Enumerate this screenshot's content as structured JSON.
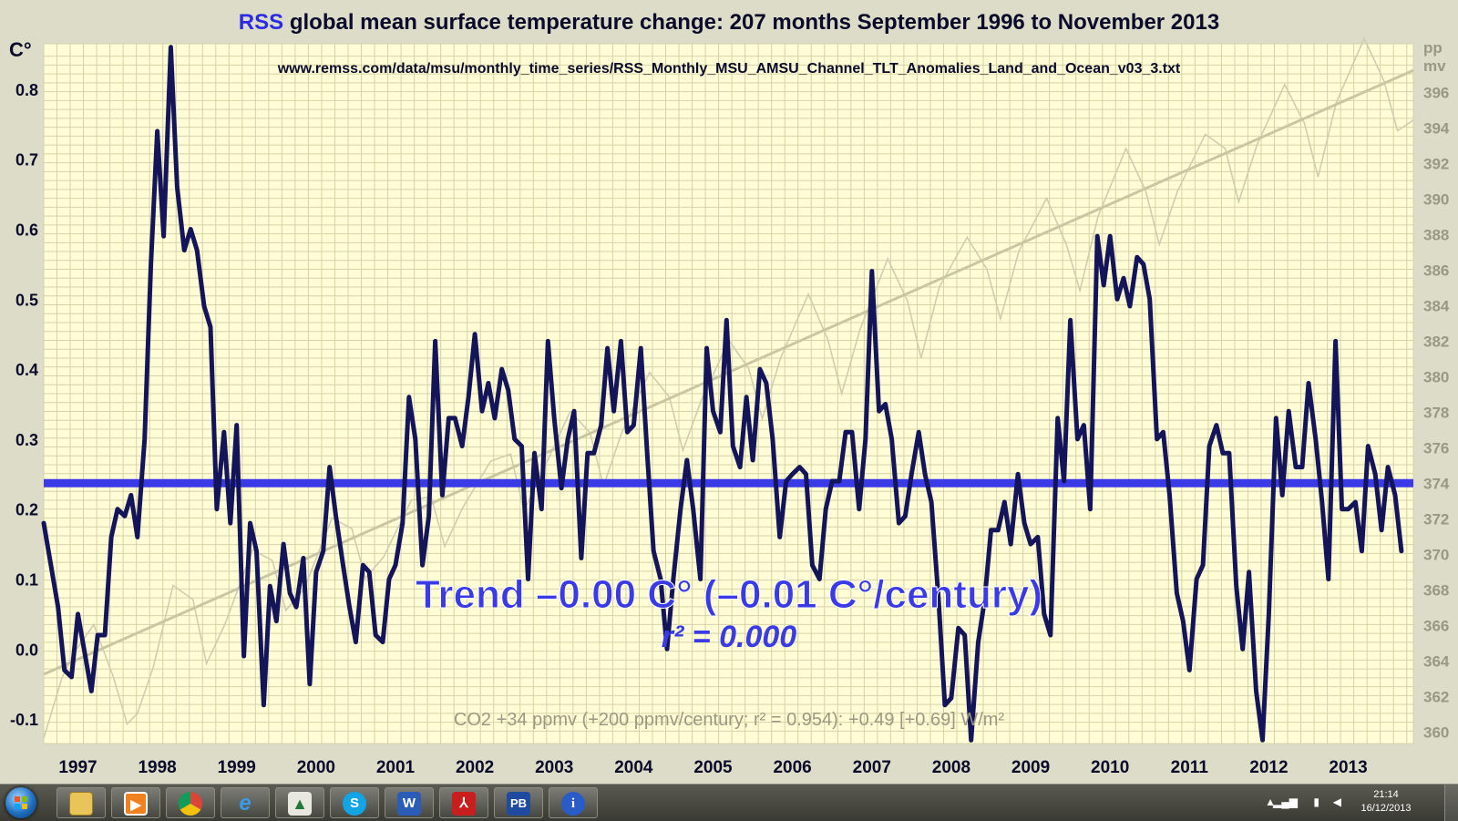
{
  "chart_data": {
    "type": "line",
    "title_prefix": "RSS",
    "title_rest": " global mean surface temperature change: 207 months September 1996 to November 2013",
    "source_url": "www.remss.com/data/msu/monthly_time_series/RSS_Monthly_MSU_AMSU_Channel_TLT_Anomalies_Land_and_Ocean_v03_3.txt",
    "y_unit_label": "C°",
    "y2_unit_label_line1": "pp",
    "y2_unit_label_line2": "mv",
    "ylim": [
      -0.135,
      0.865
    ],
    "y_ticks": [
      -0.1,
      0.0,
      0.1,
      0.2,
      0.3,
      0.4,
      0.5,
      0.6,
      0.7,
      0.8
    ],
    "y_tick_labels": [
      "-0.1",
      "0.0",
      "0.1",
      "0.2",
      "0.3",
      "0.4",
      "0.5",
      "0.6",
      "0.7",
      "0.8"
    ],
    "y2lim": [
      359.3,
      398.7
    ],
    "y2_ticks": [
      360,
      362,
      364,
      366,
      368,
      370,
      372,
      374,
      376,
      378,
      380,
      382,
      384,
      386,
      388,
      390,
      392,
      394,
      396
    ],
    "xlim": [
      1996.67,
      2013.92
    ],
    "x_ticks": [
      1997.1,
      1998.1,
      1999.1,
      2000.1,
      2001.1,
      2002.1,
      2003.1,
      2004.1,
      2005.1,
      2006.1,
      2007.1,
      2008.1,
      2009.1,
      2010.1,
      2011.1,
      2012.1,
      2013.1
    ],
    "x_tick_labels": [
      "1997",
      "1998",
      "1999",
      "2000",
      "2001",
      "2002",
      "2003",
      "2004",
      "2005",
      "2006",
      "2007",
      "2008",
      "2009",
      "2010",
      "2011",
      "2012",
      "2013"
    ],
    "grid": true,
    "series": [
      {
        "color": "#14145a",
        "anchors": [
          [
            1996.67,
            0.18
          ],
          [
            1996.85,
            0.06
          ],
          [
            1996.93,
            -0.03
          ],
          [
            1997.02,
            -0.04
          ],
          [
            1997.1,
            0.05
          ],
          [
            1997.27,
            -0.06
          ],
          [
            1997.35,
            0.02
          ],
          [
            1997.44,
            0.02
          ],
          [
            1997.52,
            0.16
          ],
          [
            1997.6,
            0.2
          ],
          [
            1997.69,
            0.19
          ],
          [
            1997.77,
            0.22
          ],
          [
            1997.85,
            0.16
          ],
          [
            1997.94,
            0.3
          ],
          [
            1998.02,
            0.55
          ],
          [
            1998.1,
            0.74
          ],
          [
            1998.18,
            0.59
          ],
          [
            1998.27,
            0.86
          ],
          [
            1998.35,
            0.66
          ],
          [
            1998.44,
            0.57
          ],
          [
            1998.52,
            0.6
          ],
          [
            1998.6,
            0.57
          ],
          [
            1998.69,
            0.49
          ],
          [
            1998.77,
            0.46
          ],
          [
            1998.85,
            0.2
          ],
          [
            1998.94,
            0.31
          ],
          [
            1999.02,
            0.18
          ],
          [
            1999.1,
            0.32
          ],
          [
            1999.19,
            -0.01
          ],
          [
            1999.27,
            0.18
          ],
          [
            1999.35,
            0.14
          ],
          [
            1999.44,
            -0.08
          ],
          [
            1999.52,
            0.09
          ],
          [
            1999.6,
            0.04
          ],
          [
            1999.69,
            0.15
          ],
          [
            1999.77,
            0.08
          ],
          [
            1999.85,
            0.06
          ],
          [
            1999.94,
            0.13
          ],
          [
            2000.02,
            -0.05
          ],
          [
            2000.1,
            0.11
          ],
          [
            2000.19,
            0.14
          ],
          [
            2000.27,
            0.26
          ],
          [
            2000.35,
            0.19
          ],
          [
            2000.44,
            0.12
          ],
          [
            2000.52,
            0.06
          ],
          [
            2000.6,
            0.01
          ],
          [
            2000.69,
            0.12
          ],
          [
            2000.77,
            0.11
          ],
          [
            2000.85,
            0.02
          ],
          [
            2000.94,
            0.01
          ],
          [
            2001.02,
            0.1
          ],
          [
            2001.1,
            0.12
          ],
          [
            2001.19,
            0.18
          ],
          [
            2001.27,
            0.36
          ],
          [
            2001.35,
            0.3
          ],
          [
            2001.44,
            0.12
          ],
          [
            2001.52,
            0.19
          ],
          [
            2001.6,
            0.44
          ],
          [
            2001.69,
            0.22
          ],
          [
            2001.77,
            0.33
          ],
          [
            2001.85,
            0.33
          ],
          [
            2001.94,
            0.29
          ],
          [
            2002.02,
            0.36
          ],
          [
            2002.1,
            0.45
          ],
          [
            2002.19,
            0.34
          ],
          [
            2002.27,
            0.38
          ],
          [
            2002.35,
            0.33
          ],
          [
            2002.44,
            0.4
          ],
          [
            2002.52,
            0.37
          ],
          [
            2002.6,
            0.3
          ],
          [
            2002.69,
            0.29
          ],
          [
            2002.77,
            0.1
          ],
          [
            2002.85,
            0.28
          ],
          [
            2002.94,
            0.2
          ],
          [
            2003.02,
            0.44
          ],
          [
            2003.1,
            0.33
          ],
          [
            2003.19,
            0.23
          ],
          [
            2003.27,
            0.3
          ],
          [
            2003.35,
            0.34
          ],
          [
            2003.44,
            0.13
          ],
          [
            2003.52,
            0.28
          ],
          [
            2003.6,
            0.28
          ],
          [
            2003.69,
            0.32
          ],
          [
            2003.77,
            0.43
          ],
          [
            2003.85,
            0.34
          ],
          [
            2003.94,
            0.44
          ],
          [
            2004.02,
            0.31
          ],
          [
            2004.1,
            0.32
          ],
          [
            2004.19,
            0.43
          ],
          [
            2004.27,
            0.28
          ],
          [
            2004.35,
            0.14
          ],
          [
            2004.44,
            0.1
          ],
          [
            2004.52,
            0.0
          ],
          [
            2004.6,
            0.1
          ],
          [
            2004.69,
            0.2
          ],
          [
            2004.77,
            0.27
          ],
          [
            2004.85,
            0.2
          ],
          [
            2004.94,
            0.1
          ],
          [
            2005.02,
            0.43
          ],
          [
            2005.1,
            0.34
          ],
          [
            2005.19,
            0.31
          ],
          [
            2005.27,
            0.47
          ],
          [
            2005.35,
            0.29
          ],
          [
            2005.44,
            0.26
          ],
          [
            2005.52,
            0.36
          ],
          [
            2005.6,
            0.27
          ],
          [
            2005.69,
            0.4
          ],
          [
            2005.77,
            0.38
          ],
          [
            2005.85,
            0.3
          ],
          [
            2005.94,
            0.16
          ],
          [
            2006.02,
            0.24
          ],
          [
            2006.1,
            0.25
          ],
          [
            2006.19,
            0.26
          ],
          [
            2006.27,
            0.25
          ],
          [
            2006.35,
            0.12
          ],
          [
            2006.44,
            0.1
          ],
          [
            2006.52,
            0.2
          ],
          [
            2006.6,
            0.24
          ],
          [
            2006.69,
            0.24
          ],
          [
            2006.77,
            0.31
          ],
          [
            2006.85,
            0.31
          ],
          [
            2006.94,
            0.2
          ],
          [
            2007.02,
            0.3
          ],
          [
            2007.1,
            0.54
          ],
          [
            2007.19,
            0.34
          ],
          [
            2007.27,
            0.35
          ],
          [
            2007.35,
            0.3
          ],
          [
            2007.44,
            0.18
          ],
          [
            2007.52,
            0.19
          ],
          [
            2007.6,
            0.25
          ],
          [
            2007.69,
            0.31
          ],
          [
            2007.77,
            0.25
          ],
          [
            2007.85,
            0.21
          ],
          [
            2007.94,
            0.07
          ],
          [
            2008.02,
            -0.08
          ],
          [
            2008.1,
            -0.07
          ],
          [
            2008.19,
            0.03
          ],
          [
            2008.27,
            0.02
          ],
          [
            2008.35,
            -0.13
          ],
          [
            2008.44,
            0.01
          ],
          [
            2008.52,
            0.07
          ],
          [
            2008.6,
            0.17
          ],
          [
            2008.69,
            0.17
          ],
          [
            2008.77,
            0.21
          ],
          [
            2008.85,
            0.15
          ],
          [
            2008.94,
            0.25
          ],
          [
            2009.02,
            0.18
          ],
          [
            2009.1,
            0.15
          ],
          [
            2009.19,
            0.16
          ],
          [
            2009.27,
            0.05
          ],
          [
            2009.35,
            0.02
          ],
          [
            2009.44,
            0.33
          ],
          [
            2009.52,
            0.24
          ],
          [
            2009.6,
            0.47
          ],
          [
            2009.69,
            0.3
          ],
          [
            2009.77,
            0.32
          ],
          [
            2009.85,
            0.2
          ],
          [
            2009.94,
            0.59
          ],
          [
            2010.02,
            0.52
          ],
          [
            2010.1,
            0.59
          ],
          [
            2010.19,
            0.5
          ],
          [
            2010.27,
            0.53
          ],
          [
            2010.35,
            0.49
          ],
          [
            2010.44,
            0.56
          ],
          [
            2010.52,
            0.55
          ],
          [
            2010.6,
            0.5
          ],
          [
            2010.69,
            0.3
          ],
          [
            2010.77,
            0.31
          ],
          [
            2010.85,
            0.22
          ],
          [
            2010.94,
            0.08
          ],
          [
            2011.02,
            0.04
          ],
          [
            2011.1,
            -0.03
          ],
          [
            2011.19,
            0.1
          ],
          [
            2011.27,
            0.12
          ],
          [
            2011.35,
            0.29
          ],
          [
            2011.44,
            0.32
          ],
          [
            2011.52,
            0.28
          ],
          [
            2011.6,
            0.28
          ],
          [
            2011.69,
            0.09
          ],
          [
            2011.77,
            0.0
          ],
          [
            2011.85,
            0.11
          ],
          [
            2011.94,
            -0.06
          ],
          [
            2012.02,
            -0.13
          ],
          [
            2012.1,
            0.05
          ],
          [
            2012.19,
            0.33
          ],
          [
            2012.27,
            0.22
          ],
          [
            2012.35,
            0.34
          ],
          [
            2012.44,
            0.26
          ],
          [
            2012.52,
            0.26
          ],
          [
            2012.6,
            0.38
          ],
          [
            2012.69,
            0.3
          ],
          [
            2012.77,
            0.21
          ],
          [
            2012.85,
            0.1
          ],
          [
            2012.94,
            0.44
          ],
          [
            2013.02,
            0.2
          ],
          [
            2013.1,
            0.2
          ],
          [
            2013.19,
            0.21
          ],
          [
            2013.27,
            0.14
          ],
          [
            2013.35,
            0.29
          ],
          [
            2013.44,
            0.25
          ],
          [
            2013.52,
            0.17
          ],
          [
            2013.6,
            0.26
          ],
          [
            2013.69,
            0.22
          ],
          [
            2013.77,
            0.14
          ]
        ]
      }
    ],
    "mean_line": {
      "value": 0.237,
      "color": "#3a3ae6"
    },
    "co2_trend": {
      "start": [
        1996.67,
        363.2
      ],
      "end": [
        2013.92,
        397.2
      ],
      "color": "#c9c6a2"
    },
    "co2_series": {
      "color": "#cfcdb0",
      "anchors": [
        [
          1996.67,
          359.6
        ],
        [
          1996.9,
          363.0
        ],
        [
          1997.05,
          364.4
        ],
        [
          1997.3,
          366.0
        ],
        [
          1997.55,
          363.0
        ],
        [
          1997.72,
          360.4
        ],
        [
          1997.85,
          361.0
        ],
        [
          1998.05,
          363.6
        ],
        [
          1998.3,
          368.2
        ],
        [
          1998.55,
          367.4
        ],
        [
          1998.72,
          363.8
        ],
        [
          1998.95,
          366.0
        ],
        [
          1999.3,
          370.2
        ],
        [
          1999.55,
          369.6
        ],
        [
          1999.72,
          366.8
        ],
        [
          1999.95,
          368.0
        ],
        [
          2000.3,
          372.0
        ],
        [
          2000.55,
          371.4
        ],
        [
          2000.72,
          368.6
        ],
        [
          2000.95,
          369.8
        ],
        [
          2001.3,
          373.0
        ],
        [
          2001.55,
          373.2
        ],
        [
          2001.72,
          370.4
        ],
        [
          2001.95,
          372.6
        ],
        [
          2002.3,
          375.2
        ],
        [
          2002.55,
          375.6
        ],
        [
          2002.72,
          372.4
        ],
        [
          2002.95,
          374.6
        ],
        [
          2003.3,
          378.0
        ],
        [
          2003.55,
          376.8
        ],
        [
          2003.72,
          373.8
        ],
        [
          2003.95,
          376.8
        ],
        [
          2004.3,
          380.2
        ],
        [
          2004.55,
          378.8
        ],
        [
          2004.72,
          375.8
        ],
        [
          2004.95,
          378.6
        ],
        [
          2005.3,
          382.0
        ],
        [
          2005.55,
          380.4
        ],
        [
          2005.72,
          377.6
        ],
        [
          2005.95,
          381.0
        ],
        [
          2006.3,
          384.6
        ],
        [
          2006.55,
          382.0
        ],
        [
          2006.72,
          379.0
        ],
        [
          2006.95,
          382.6
        ],
        [
          2007.3,
          386.6
        ],
        [
          2007.55,
          384.2
        ],
        [
          2007.72,
          381.0
        ],
        [
          2007.95,
          385.0
        ],
        [
          2008.3,
          387.8
        ],
        [
          2008.55,
          386.0
        ],
        [
          2008.72,
          383.2
        ],
        [
          2008.95,
          387.0
        ],
        [
          2009.3,
          390.0
        ],
        [
          2009.55,
          387.4
        ],
        [
          2009.72,
          384.8
        ],
        [
          2009.95,
          389.0
        ],
        [
          2010.3,
          392.8
        ],
        [
          2010.55,
          390.4
        ],
        [
          2010.72,
          387.4
        ],
        [
          2010.95,
          390.4
        ],
        [
          2011.3,
          393.6
        ],
        [
          2011.55,
          392.8
        ],
        [
          2011.72,
          389.8
        ],
        [
          2011.95,
          393.0
        ],
        [
          2012.3,
          396.4
        ],
        [
          2012.55,
          394.2
        ],
        [
          2012.72,
          391.2
        ],
        [
          2012.95,
          395.4
        ],
        [
          2013.3,
          399.0
        ],
        [
          2013.55,
          396.6
        ],
        [
          2013.72,
          393.8
        ],
        [
          2013.92,
          394.4
        ]
      ]
    },
    "trend_text": "Trend –0.00 C° (–0.01 C°/century)",
    "r2_text": "r² = 0.000",
    "co2_text": "CO2 +34 ppmv (+200 ppmv/century; r² = 0.954): +0.49 [+0.69] W/m²",
    "colors": {
      "background": "#dcdcc8",
      "plot_background": "#fffdd6",
      "grid": "#d6d2a6",
      "title_text": "#0a0a2a",
      "title_accent": "#2b2be6",
      "axis_text": "#0a0a2a",
      "trend_text": "#3a3ae6",
      "co2_text": "#9a9882"
    }
  },
  "taskbar": {
    "apps": [
      "folder-icon",
      "media-player-icon",
      "chrome-icon",
      "internet-explorer-icon",
      "excel-icon",
      "skype-icon",
      "word-icon",
      "acrobat-icon",
      "publisher-icon",
      "info-icon"
    ],
    "time": "21:14",
    "date": "16/12/2013"
  }
}
